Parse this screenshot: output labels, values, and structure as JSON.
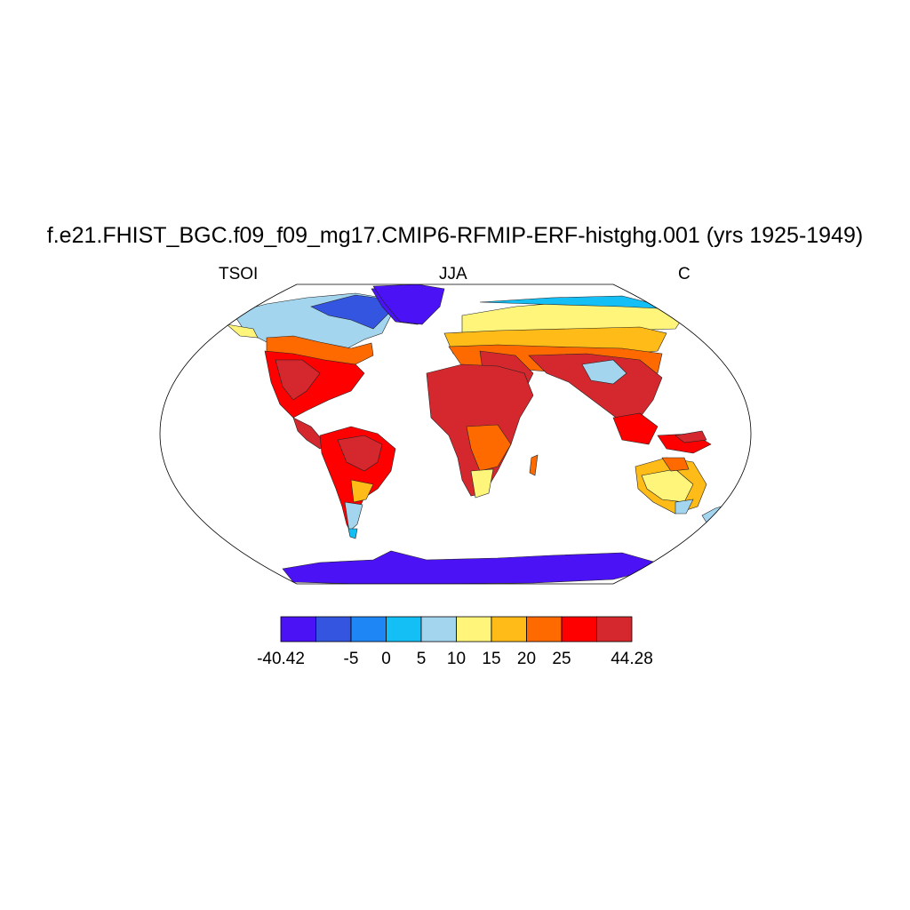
{
  "title": "f.e21.FHIST_BGC.f09_f09_mg17.CMIP6-RFMIP-ERF-histghg.001 (yrs 1925-1949)",
  "left_label": "TSOI",
  "center_label": "JJA",
  "right_label": "C",
  "colorbar": {
    "colors": [
      "#4a12f5",
      "#3355e0",
      "#1f86f5",
      "#14bff5",
      "#a3d6ee",
      "#fff57a",
      "#ffbb17",
      "#ff6a00",
      "#ff0000",
      "#d4282e"
    ],
    "labels": [
      "-40.42",
      "-5",
      "0",
      "5",
      "10",
      "15",
      "20",
      "25",
      "44.28"
    ]
  }
}
